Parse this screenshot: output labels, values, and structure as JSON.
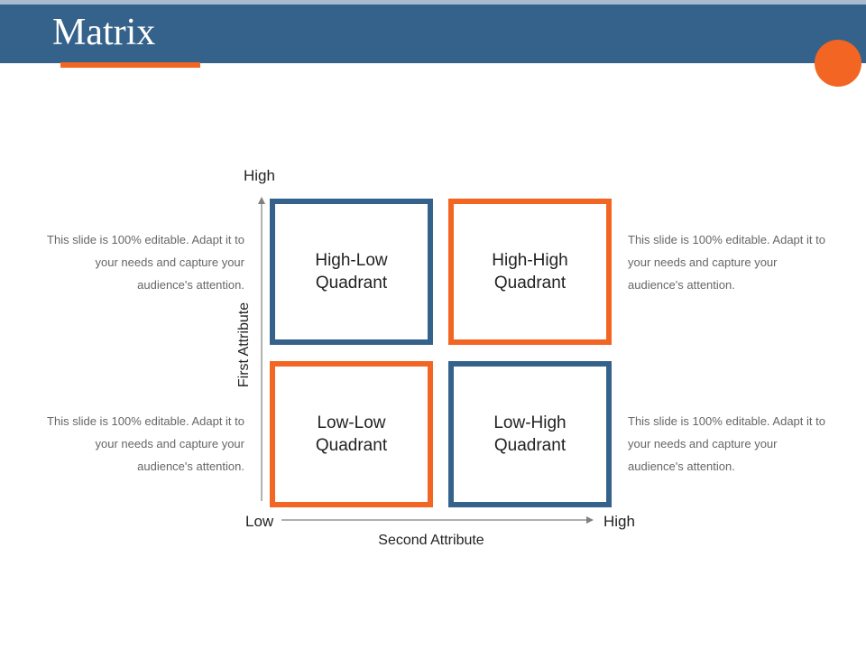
{
  "slide": {
    "title": "Matrix",
    "colors": {
      "header": "#35628b",
      "accent": "#f26522",
      "strip": "#a9bccf"
    }
  },
  "axes": {
    "y_high": "High",
    "x_low": "Low",
    "x_high": "High",
    "y_title": "First Attribute",
    "x_title": "Second Attribute"
  },
  "quadrants": {
    "high_low": "High-Low Quadrant",
    "high_high": "High-High Quadrant",
    "low_low": "Low-Low Quadrant",
    "low_high": "Low-High Quadrant"
  },
  "notes": {
    "top_left": "This slide is 100% editable. Adapt it to your needs and capture your audience's attention.",
    "top_right": "This slide is 100% editable. Adapt it to your needs and capture your audience's attention.",
    "bottom_left": "This slide is 100% editable. Adapt it to your needs and capture your audience's attention.",
    "bottom_right": "This slide is 100% editable. Adapt it to your needs and capture your audience's attention."
  }
}
